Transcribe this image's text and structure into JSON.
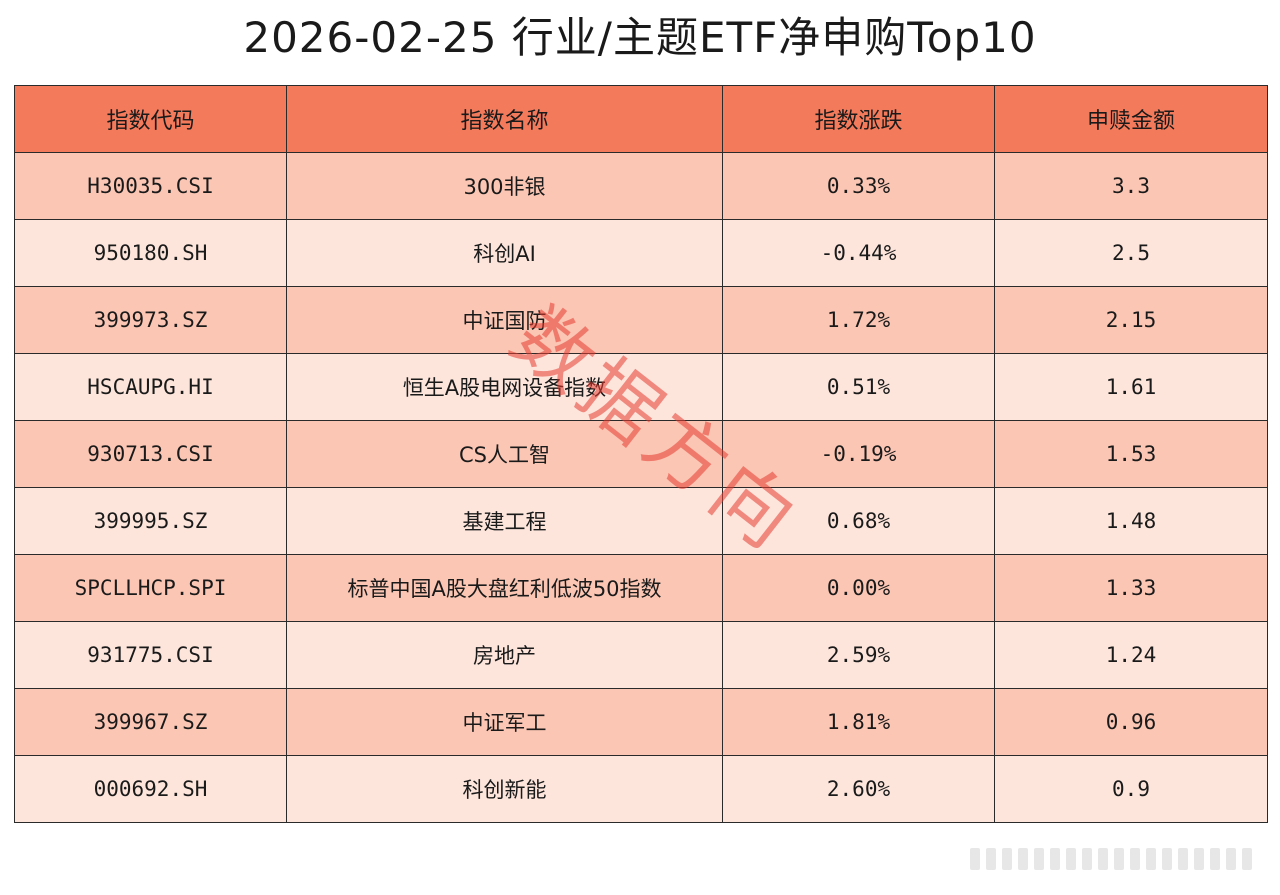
{
  "title": "2026-02-25 行业/主题ETF净申购Top10",
  "watermark": "数据方向",
  "chart_data": {
    "type": "table",
    "title": "2026-02-25 行业/主题ETF净申购Top10",
    "columns": [
      "指数代码",
      "指数名称",
      "指数涨跌",
      "申赎金额"
    ],
    "rows": [
      [
        "H30035.CSI",
        "300非银",
        "0.33%",
        "3.3"
      ],
      [
        "950180.SH",
        "科创AI",
        "-0.44%",
        "2.5"
      ],
      [
        "399973.SZ",
        "中证国防",
        "1.72%",
        "2.15"
      ],
      [
        "HSCAUPG.HI",
        "恒生A股电网设备指数",
        "0.51%",
        "1.61"
      ],
      [
        "930713.CSI",
        "CS人工智",
        "-0.19%",
        "1.53"
      ],
      [
        "399995.SZ",
        "基建工程",
        "0.68%",
        "1.48"
      ],
      [
        "SPCLLHCP.SPI",
        "标普中国A股大盘红利低波50指数",
        "0.00%",
        "1.33"
      ],
      [
        "931775.CSI",
        "房地产",
        "2.59%",
        "1.24"
      ],
      [
        "399967.SZ",
        "中证军工",
        "1.81%",
        "0.96"
      ],
      [
        "000692.SH",
        "科创新能",
        "2.60%",
        "0.9"
      ]
    ]
  },
  "colors": {
    "header": "#f47a5c",
    "row_dark": "#fbc6b4",
    "row_light": "#fde5dc",
    "watermark": "#e63c32"
  }
}
